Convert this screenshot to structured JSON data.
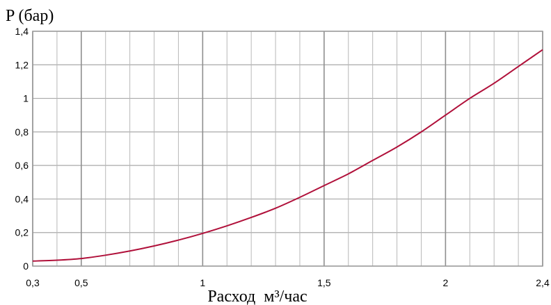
{
  "chart_data": {
    "type": "line",
    "ylabel": "P (бар)",
    "xlabel": "Расход  м³/час",
    "xlim": [
      0.3,
      2.4
    ],
    "ylim": [
      0,
      1.4
    ],
    "grid": true,
    "x_ticks": [
      {
        "value": 0.3,
        "label": "0,3"
      },
      {
        "value": 0.5,
        "label": "0,5"
      },
      {
        "value": 1.0,
        "label": "1"
      },
      {
        "value": 1.5,
        "label": "1,5"
      },
      {
        "value": 2.0,
        "label": "2"
      },
      {
        "value": 2.4,
        "label": "2,4"
      }
    ],
    "y_ticks": [
      {
        "value": 0,
        "label": "0"
      },
      {
        "value": 0.2,
        "label": "0,2"
      },
      {
        "value": 0.4,
        "label": "0,4"
      },
      {
        "value": 0.6,
        "label": "0,6"
      },
      {
        "value": 0.8,
        "label": "0,8"
      },
      {
        "value": 1.0,
        "label": "1"
      },
      {
        "value": 1.2,
        "label": "1,2"
      },
      {
        "value": 1.4,
        "label": "1,4"
      }
    ],
    "series": [
      {
        "color": "#b0103a",
        "x": [
          0.3,
          0.4,
          0.5,
          0.6,
          0.7,
          0.8,
          0.9,
          1.0,
          1.1,
          1.2,
          1.3,
          1.4,
          1.5,
          1.6,
          1.7,
          1.8,
          1.9,
          2.0,
          2.1,
          2.2,
          2.3,
          2.4
        ],
        "y": [
          0.03,
          0.035,
          0.045,
          0.065,
          0.09,
          0.12,
          0.155,
          0.195,
          0.24,
          0.29,
          0.345,
          0.41,
          0.48,
          0.55,
          0.63,
          0.71,
          0.8,
          0.9,
          1.0,
          1.09,
          1.19,
          1.29
        ]
      }
    ]
  }
}
